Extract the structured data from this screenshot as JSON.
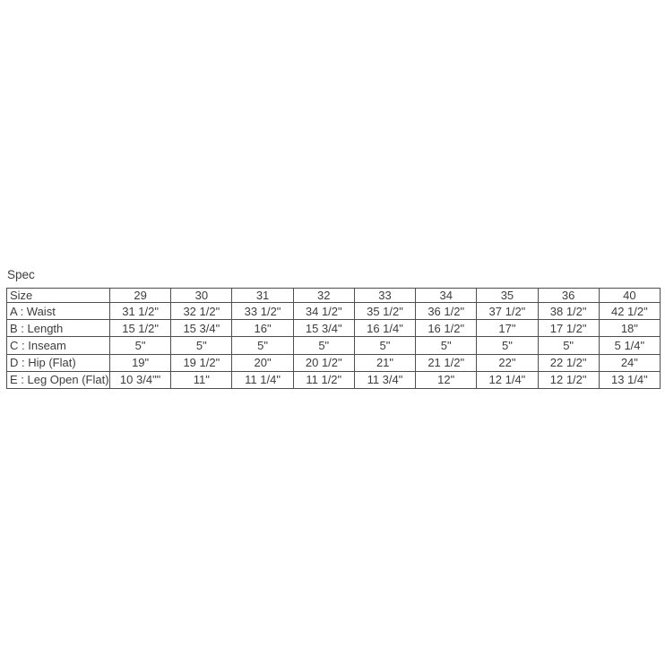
{
  "spec": {
    "label": "Spec"
  },
  "table": {
    "corner_header": "Size",
    "size_headers": [
      "29",
      "30",
      "31",
      "32",
      "33",
      "34",
      "35",
      "36",
      "40"
    ],
    "rows": [
      {
        "label": "A : Waist",
        "values": [
          "31 1/2\"",
          "32 1/2\"",
          "33 1/2\"",
          "34 1/2\"",
          "35 1/2\"",
          "36 1/2\"",
          "37 1/2\"",
          "38 1/2\"",
          "42 1/2\""
        ]
      },
      {
        "label": "B : Length",
        "values": [
          "15 1/2\"",
          "15 3/4\"",
          "16\"",
          "15 3/4\"",
          "16 1/4\"",
          "16 1/2\"",
          "17\"",
          "17 1/2\"",
          "18\""
        ]
      },
      {
        "label": "C : Inseam",
        "values": [
          "5\"",
          "5\"",
          "5\"",
          "5\"",
          "5\"",
          "5\"",
          "5\"",
          "5\"",
          "5 1/4\""
        ]
      },
      {
        "label": "D : Hip (Flat)",
        "values": [
          "19\"",
          "19 1/2\"",
          "20\"",
          "20 1/2\"",
          "21\"",
          "21 1/2\"",
          "22\"",
          "22 1/2\"",
          "24\""
        ]
      },
      {
        "label": "E : Leg Open (Flat)",
        "values": [
          "10 3/4\"\"",
          "11\"",
          "11 1/4\"",
          "11 1/2\"",
          "11 3/4\"",
          "12\"",
          "12 1/4\"",
          "12 1/2\"",
          "13 1/4\""
        ]
      }
    ]
  },
  "colors": {
    "background": "#ffffff",
    "text": "#3d3d3d",
    "border": "#4f4f4f"
  },
  "chart_data": {
    "type": "table",
    "title": "Spec",
    "columns": [
      "Size",
      "29",
      "30",
      "31",
      "32",
      "33",
      "34",
      "35",
      "36",
      "40"
    ],
    "rows": [
      [
        "A : Waist",
        "31 1/2\"",
        "32 1/2\"",
        "33 1/2\"",
        "34 1/2\"",
        "35 1/2\"",
        "36 1/2\"",
        "37 1/2\"",
        "38 1/2\"",
        "42 1/2\""
      ],
      [
        "B : Length",
        "15 1/2\"",
        "15 3/4\"",
        "16\"",
        "15 3/4\"",
        "16 1/4\"",
        "16 1/2\"",
        "17\"",
        "17 1/2\"",
        "18\""
      ],
      [
        "C : Inseam",
        "5\"",
        "5\"",
        "5\"",
        "5\"",
        "5\"",
        "5\"",
        "5\"",
        "5\"",
        "5 1/4\""
      ],
      [
        "D : Hip (Flat)",
        "19\"",
        "19 1/2\"",
        "20\"",
        "20 1/2\"",
        "21\"",
        "21 1/2\"",
        "22\"",
        "22 1/2\"",
        "24\""
      ],
      [
        "E : Leg Open (Flat)",
        "10 3/4\"\"",
        "11\"",
        "11 1/4\"",
        "11 1/2\"",
        "11 3/4\"",
        "12\"",
        "12 1/4\"",
        "12 1/2\"",
        "13 1/4\""
      ]
    ]
  }
}
